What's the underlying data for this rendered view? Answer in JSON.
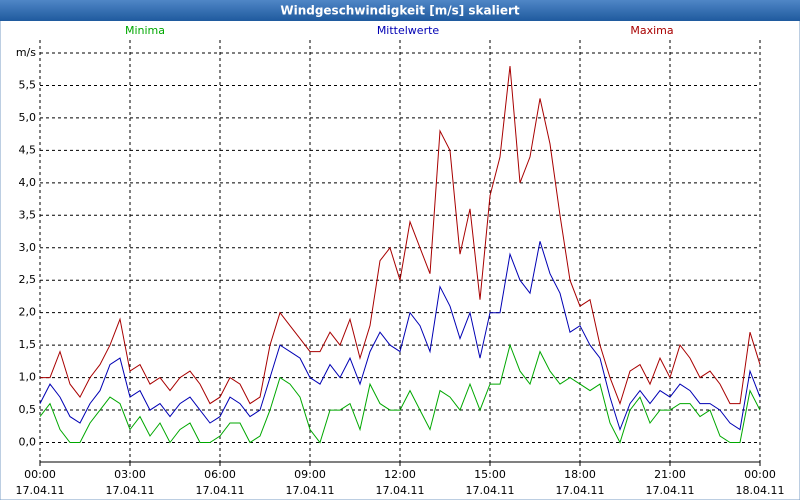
{
  "chart_data": {
    "type": "line",
    "title": "Windgeschwindigkeit [m/s] skaliert",
    "x": [
      0,
      20,
      40,
      60,
      80,
      100,
      120,
      140,
      160,
      180,
      200,
      220,
      240,
      260,
      280,
      300,
      320,
      340,
      360,
      380,
      400,
      420,
      440,
      460,
      480,
      500,
      520,
      540,
      560,
      580,
      600,
      620,
      640,
      660,
      680,
      700,
      720,
      740,
      760,
      780,
      800,
      820,
      840,
      860,
      880,
      900,
      920,
      940,
      960,
      980,
      1000,
      1020,
      1040,
      1060,
      1080,
      1100,
      1120,
      1140,
      1160,
      1180,
      1200,
      1220,
      1240,
      1260,
      1280,
      1300,
      1320,
      1340,
      1360,
      1380,
      1400,
      1420,
      1440
    ],
    "series": [
      {
        "name": "Minima",
        "color": "#00a800",
        "values": [
          0.4,
          0.6,
          0.2,
          0.0,
          0.0,
          0.3,
          0.5,
          0.7,
          0.6,
          0.2,
          0.4,
          0.1,
          0.3,
          0.0,
          0.2,
          0.3,
          0.0,
          0.0,
          0.1,
          0.3,
          0.3,
          0.0,
          0.1,
          0.5,
          1.0,
          0.9,
          0.7,
          0.2,
          0.0,
          0.5,
          0.5,
          0.6,
          0.2,
          0.9,
          0.6,
          0.5,
          0.5,
          0.8,
          0.5,
          0.2,
          0.8,
          0.7,
          0.5,
          0.9,
          0.5,
          0.9,
          0.9,
          1.5,
          1.1,
          0.9,
          1.4,
          1.1,
          0.9,
          1.0,
          0.9,
          0.8,
          0.9,
          0.3,
          0.0,
          0.5,
          0.7,
          0.3,
          0.5,
          0.5,
          0.6,
          0.6,
          0.4,
          0.5,
          0.1,
          0.0,
          0.0,
          0.8,
          0.5
        ]
      },
      {
        "name": "Mittelwerte",
        "color": "#0000b4",
        "values": [
          0.6,
          0.9,
          0.7,
          0.4,
          0.3,
          0.6,
          0.8,
          1.2,
          1.3,
          0.7,
          0.8,
          0.5,
          0.6,
          0.4,
          0.6,
          0.7,
          0.5,
          0.3,
          0.4,
          0.7,
          0.6,
          0.4,
          0.5,
          1.0,
          1.5,
          1.4,
          1.3,
          1.0,
          0.9,
          1.2,
          1.0,
          1.3,
          0.9,
          1.4,
          1.7,
          1.5,
          1.4,
          2.0,
          1.8,
          1.4,
          2.4,
          2.1,
          1.6,
          2.0,
          1.3,
          2.0,
          2.0,
          2.9,
          2.5,
          2.3,
          3.1,
          2.6,
          2.3,
          1.7,
          1.8,
          1.5,
          1.3,
          0.7,
          0.2,
          0.6,
          0.8,
          0.6,
          0.8,
          0.7,
          0.9,
          0.8,
          0.6,
          0.6,
          0.5,
          0.3,
          0.2,
          1.1,
          0.7
        ]
      },
      {
        "name": "Maxima",
        "color": "#a80000",
        "values": [
          1.0,
          1.0,
          1.4,
          0.9,
          0.7,
          1.0,
          1.2,
          1.5,
          1.9,
          1.1,
          1.2,
          0.9,
          1.0,
          0.8,
          1.0,
          1.1,
          0.9,
          0.6,
          0.7,
          1.0,
          0.9,
          0.6,
          0.7,
          1.5,
          2.0,
          1.8,
          1.6,
          1.4,
          1.4,
          1.7,
          1.5,
          1.9,
          1.3,
          1.8,
          2.8,
          3.0,
          2.5,
          3.4,
          3.0,
          2.6,
          4.8,
          4.5,
          2.9,
          3.6,
          2.2,
          3.8,
          4.4,
          5.8,
          4.0,
          4.4,
          5.3,
          4.6,
          3.5,
          2.5,
          2.1,
          2.2,
          1.5,
          1.0,
          0.6,
          1.1,
          1.2,
          0.9,
          1.3,
          1.0,
          1.5,
          1.3,
          1.0,
          1.1,
          0.9,
          0.6,
          0.6,
          1.7,
          1.2
        ]
      }
    ],
    "xlim": [
      0,
      1440
    ],
    "xticks": [
      {
        "value": 0,
        "label": "00:00",
        "date": "17.04.11"
      },
      {
        "value": 180,
        "label": "03:00",
        "date": "17.04.11"
      },
      {
        "value": 360,
        "label": "06:00",
        "date": "17.04.11"
      },
      {
        "value": 540,
        "label": "09:00",
        "date": "17.04.11"
      },
      {
        "value": 720,
        "label": "12:00",
        "date": "17.04.11"
      },
      {
        "value": 900,
        "label": "15:00",
        "date": "17.04.11"
      },
      {
        "value": 1080,
        "label": "18:00",
        "date": "17.04.11"
      },
      {
        "value": 1260,
        "label": "21:00",
        "date": "17.04.11"
      },
      {
        "value": 1440,
        "label": "00:00",
        "date": "18.04.11"
      }
    ],
    "ylim": [
      -0.3,
      6.2
    ],
    "yticks": [
      {
        "value": 0,
        "label": "0,0"
      },
      {
        "value": 0.5,
        "label": "0,5"
      },
      {
        "value": 1,
        "label": "1,0"
      },
      {
        "value": 1.5,
        "label": "1,5"
      },
      {
        "value": 2,
        "label": "2,0"
      },
      {
        "value": 2.5,
        "label": "2,5"
      },
      {
        "value": 3,
        "label": "3,0"
      },
      {
        "value": 3.5,
        "label": "3,5"
      },
      {
        "value": 4,
        "label": "4,0"
      },
      {
        "value": 4.5,
        "label": "4,5"
      },
      {
        "value": 5,
        "label": "5,0"
      },
      {
        "value": 5.5,
        "label": "5,5"
      },
      {
        "value": 6,
        "label": "m/s"
      }
    ],
    "grid": true,
    "legend": "top"
  }
}
